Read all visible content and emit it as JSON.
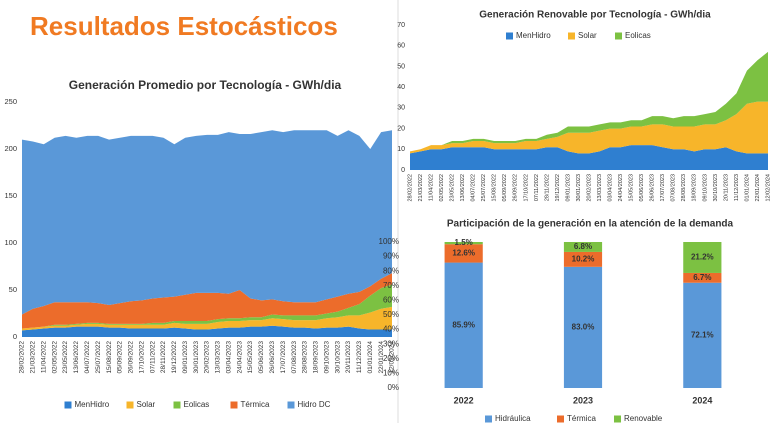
{
  "title": "Resultados Estocásticos",
  "chart_data": [
    {
      "type": "area",
      "title": "Generación Promedio por Tecnología - GWh/dia",
      "stacked": true,
      "grid": false,
      "legend": "bottom",
      "categories": [
        "28/02/2022",
        "21/03/2022",
        "11/04/2022",
        "02/05/2022",
        "23/05/2022",
        "13/06/2022",
        "04/07/2022",
        "25/07/2022",
        "15/08/2022",
        "05/09/2022",
        "26/09/2022",
        "17/10/2022",
        "07/11/2022",
        "28/11/2022",
        "19/12/2022",
        "09/01/2023",
        "30/01/2023",
        "20/02/2023",
        "13/03/2023",
        "03/04/2023",
        "24/04/2023",
        "15/05/2023",
        "05/06/2023",
        "26/06/2023",
        "17/07/2023",
        "07/08/2023",
        "28/08/2023",
        "18/09/2023",
        "09/10/2023",
        "30/10/2023",
        "20/11/2023",
        "11/12/2023",
        "01/01/2024",
        "22/01/2024",
        "12/02/2024"
      ],
      "ylim": [
        0,
        250
      ],
      "yticks": [
        0,
        50,
        100,
        150,
        200,
        250
      ],
      "series": [
        {
          "name": "MenHidro",
          "color": "#2f7fd0",
          "values": [
            7,
            8,
            9,
            10,
            10,
            11,
            11,
            11,
            10,
            10,
            9,
            9,
            9,
            9,
            10,
            9,
            8,
            8,
            9,
            10,
            10,
            11,
            11,
            12,
            11,
            10,
            10,
            9,
            10,
            10,
            11,
            9,
            8,
            8,
            8
          ]
        },
        {
          "name": "Solar",
          "color": "#f7b52a",
          "values": [
            2,
            2,
            2,
            2,
            2,
            2,
            3,
            3,
            3,
            3,
            4,
            4,
            4,
            4,
            5,
            5,
            6,
            6,
            7,
            7,
            7,
            7,
            7,
            8,
            8,
            8,
            8,
            9,
            10,
            11,
            12,
            14,
            18,
            22,
            24
          ]
        },
        {
          "name": "Eolicas",
          "color": "#7cc142",
          "values": [
            0,
            0,
            0,
            1,
            1,
            1,
            1,
            1,
            1,
            1,
            1,
            1,
            2,
            2,
            2,
            3,
            3,
            3,
            3,
            3,
            3,
            3,
            3,
            4,
            4,
            5,
            5,
            5,
            5,
            6,
            8,
            12,
            18,
            22,
            24
          ]
        },
        {
          "name": "Térmica",
          "color": "#ec6c2b",
          "values": [
            15,
            20,
            22,
            24,
            24,
            23,
            22,
            21,
            20,
            22,
            24,
            25,
            26,
            27,
            26,
            28,
            30,
            30,
            28,
            26,
            30,
            20,
            18,
            16,
            15,
            14,
            14,
            14,
            15,
            16,
            15,
            13,
            10,
            10,
            12
          ]
        },
        {
          "name": "Hidro DC",
          "color": "#5a98d8",
          "values": [
            186,
            178,
            172,
            175,
            177,
            175,
            177,
            178,
            176,
            176,
            176,
            175,
            173,
            170,
            162,
            167,
            167,
            168,
            168,
            172,
            166,
            175,
            179,
            180,
            180,
            183,
            183,
            183,
            180,
            171,
            174,
            166,
            146,
            156,
            152
          ]
        }
      ]
    },
    {
      "type": "area",
      "title": "Generación Renovable por Tecnología - GWh/dia",
      "stacked": true,
      "grid": false,
      "legend": "top",
      "categories": [
        "28/02/2022",
        "21/03/2022",
        "11/04/2022",
        "02/05/2022",
        "23/05/2022",
        "13/06/2022",
        "04/07/2022",
        "25/07/2022",
        "15/08/2022",
        "05/09/2022",
        "26/09/2022",
        "17/10/2022",
        "07/11/2022",
        "28/11/2022",
        "19/12/2022",
        "09/01/2023",
        "30/01/2023",
        "20/02/2023",
        "13/03/2023",
        "03/04/2023",
        "24/04/2023",
        "15/05/2023",
        "05/06/2023",
        "26/06/2023",
        "17/07/2023",
        "07/08/2023",
        "28/08/2023",
        "18/09/2023",
        "09/10/2023",
        "30/10/2023",
        "20/11/2023",
        "11/12/2023",
        "01/01/2024",
        "22/01/2024",
        "12/02/2024"
      ],
      "ylim": [
        0,
        70
      ],
      "yticks": [
        0,
        10,
        20,
        30,
        40,
        50,
        60,
        70
      ],
      "series": [
        {
          "name": "MenHidro",
          "color": "#2f7fd0",
          "values": [
            8,
            9,
            10,
            10,
            11,
            11,
            11,
            11,
            10,
            10,
            10,
            10,
            10,
            11,
            11,
            9,
            8,
            8,
            9,
            11,
            11,
            12,
            12,
            12,
            11,
            10,
            10,
            9,
            10,
            10,
            11,
            9,
            8,
            8,
            8
          ]
        },
        {
          "name": "Solar",
          "color": "#f7b52a",
          "values": [
            1,
            1,
            2,
            2,
            2,
            2,
            3,
            3,
            3,
            3,
            3,
            4,
            4,
            4,
            5,
            9,
            10,
            10,
            10,
            9,
            9,
            9,
            9,
            10,
            11,
            11,
            11,
            12,
            12,
            12,
            13,
            18,
            24,
            25,
            25
          ]
        },
        {
          "name": "Eolicas",
          "color": "#7cc142",
          "values": [
            0,
            0,
            0,
            0,
            1,
            1,
            1,
            1,
            1,
            1,
            1,
            1,
            1,
            2,
            2,
            3,
            3,
            3,
            3,
            3,
            3,
            3,
            3,
            4,
            4,
            4,
            5,
            5,
            5,
            6,
            8,
            10,
            16,
            20,
            24
          ]
        }
      ]
    },
    {
      "type": "bar",
      "title": "Participación de la generación en la atención de la demanda",
      "stacked": true,
      "grid": false,
      "legend": "bottom",
      "categories": [
        "2022",
        "2023",
        "2024"
      ],
      "ylim": [
        0,
        100
      ],
      "yticks": [
        {
          "value": 0,
          "label": "0%"
        },
        {
          "value": 10,
          "label": "10%"
        },
        {
          "value": 20,
          "label": "20%"
        },
        {
          "value": 30,
          "label": "30%"
        },
        {
          "value": 40,
          "label": "40%"
        },
        {
          "value": 50,
          "label": "50%"
        },
        {
          "value": 60,
          "label": "60%"
        },
        {
          "value": 70,
          "label": "70%"
        },
        {
          "value": 80,
          "label": "80%"
        },
        {
          "value": 90,
          "label": "90%"
        },
        {
          "value": 100,
          "label": "100%"
        }
      ],
      "series": [
        {
          "name": "Hidráulica",
          "color": "#5a98d8",
          "values": [
            85.9,
            83.0,
            72.1
          ],
          "value_labels": [
            "85.9%",
            "83.0%",
            "72.1%"
          ]
        },
        {
          "name": "Térmica",
          "color": "#ec6c2b",
          "values": [
            12.6,
            10.2,
            6.7
          ],
          "value_labels": [
            "12.6%",
            "10.2%",
            "6.7%"
          ]
        },
        {
          "name": "Renovable",
          "color": "#7cc142",
          "values": [
            1.5,
            6.8,
            21.2
          ],
          "value_labels": [
            "1.5%",
            "6.8%",
            "21.2%"
          ]
        }
      ]
    }
  ]
}
